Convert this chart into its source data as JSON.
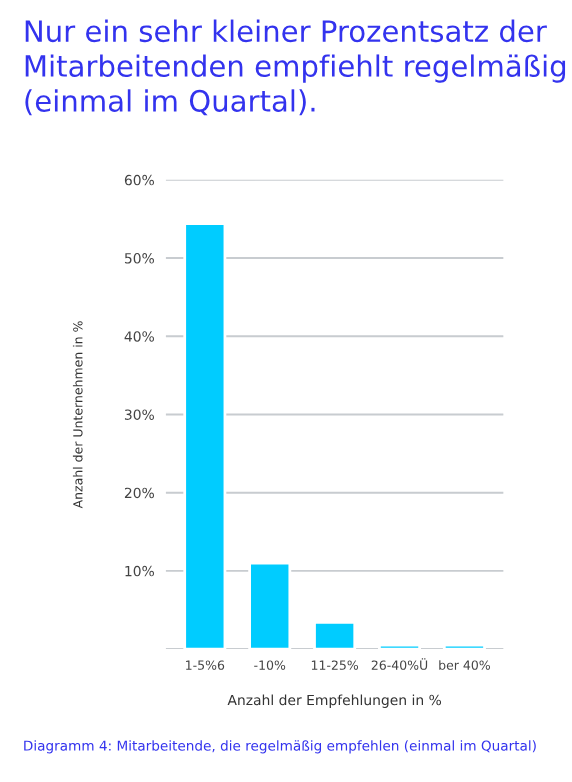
{
  "chart_data": {
    "type": "bar",
    "title": "Nur ein sehr kleiner Prozentsatz der Mitarbeitenden empfiehlt regelmäßig (einmal im Quartal).",
    "xlabel": "Anzahl der Empfehlungen in %",
    "ylabel": "Anzahl der Unternehmen in %",
    "categories": [
      "1-5%6",
      "-10%",
      "11-25%",
      "26-40%Ü",
      "ber 40%"
    ],
    "series": [
      {
        "color": "#00ccff",
        "values": [
          54.4,
          11.0,
          3.4,
          0.5,
          0.5
        ]
      }
    ],
    "ylim": [
      0,
      60
    ],
    "yticks": [
      {
        "value": 0,
        "label": null
      },
      {
        "value": 10,
        "label": "10%"
      },
      {
        "value": 20,
        "label": "20%"
      },
      {
        "value": 30,
        "label": "30%"
      },
      {
        "value": 40,
        "label": "40%"
      },
      {
        "value": 50,
        "label": "50%"
      },
      {
        "value": 60,
        "label": "60%"
      }
    ],
    "grid": "y",
    "annotations": [
      "Diagramm 4: Mitarbeitende, die regelmäßig empfehlen (einmal im Quartal)"
    ]
  }
}
